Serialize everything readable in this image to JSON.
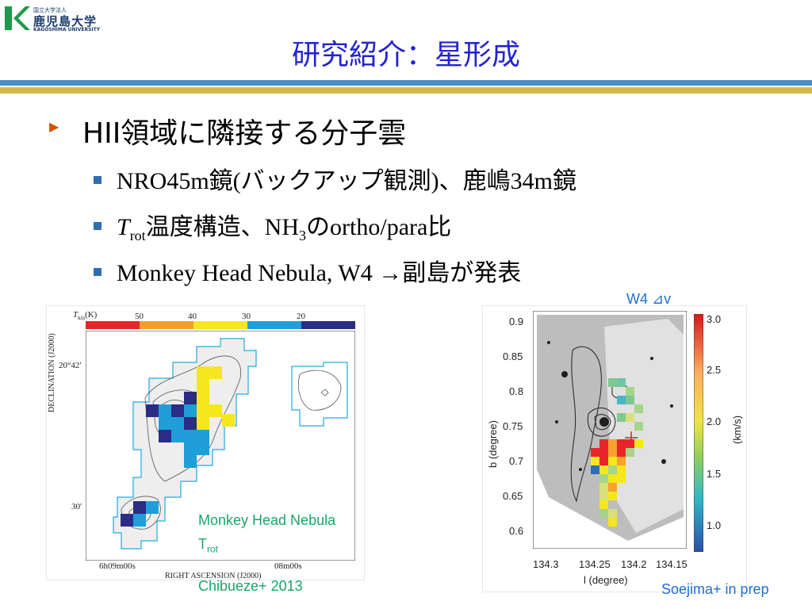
{
  "logo": {
    "small_line": "国立大学法人",
    "name_jp": "鹿児島大学",
    "name_en": "KAGOSHIMA UNIVERSITY",
    "brand_color": "#1f9a4a"
  },
  "slide": {
    "title": "研究紹介：星形成",
    "bullet": {
      "heading": "HII領域に隣接する分子雲",
      "items": [
        {
          "text": "NRO45m鏡(バックアップ観測)、鹿嶋34m鏡"
        },
        {
          "t": "T",
          "sub": "rot",
          "rest_a": "温度構造、NH",
          "sub2": "3",
          "rest_b": "のortho/para比"
        },
        {
          "text": "Monkey Head Nebula, W4 →副島が発表"
        }
      ]
    }
  },
  "left_figure": {
    "colorbar_label_t": "T",
    "colorbar_label_sub": "kin",
    "colorbar_label_unit": "(K)",
    "colorbar_ticks": [
      "50",
      "40",
      "30",
      "20"
    ],
    "colorbar_colors": [
      "#e8252a",
      "#f0a02c",
      "#f5e61e",
      "#1f9ed9",
      "#2a2c86"
    ],
    "ylabel": "DECLINATION (J2000)",
    "xlabel": "RIGHT ASCENSION (J2000)",
    "ytick_top": "20°42′",
    "ytick_bottom": "30′",
    "xtick_left": "6h09m00s",
    "xtick_right": "08m00s",
    "caption_object": "Monkey Head Nebula",
    "caption_t": "T",
    "caption_sub": "rot",
    "caption_cite": "Chibueze+ 2013"
  },
  "right_figure": {
    "label": "W4 ⊿v",
    "ylabel": "b (degree)",
    "xlabel": "l (degree)",
    "yticks": [
      "0.9",
      "0.85",
      "0.8",
      "0.75",
      "0.7",
      "0.65",
      "0.6"
    ],
    "xticks": [
      "134.3",
      "134.25",
      "134.2",
      "134.15"
    ],
    "colorbar_ticks": [
      "3.0",
      "2.5",
      "2.0",
      "1.5",
      "1.0"
    ],
    "colorbar_label": "(km/s)",
    "credit": "Soejima+ in prep"
  }
}
